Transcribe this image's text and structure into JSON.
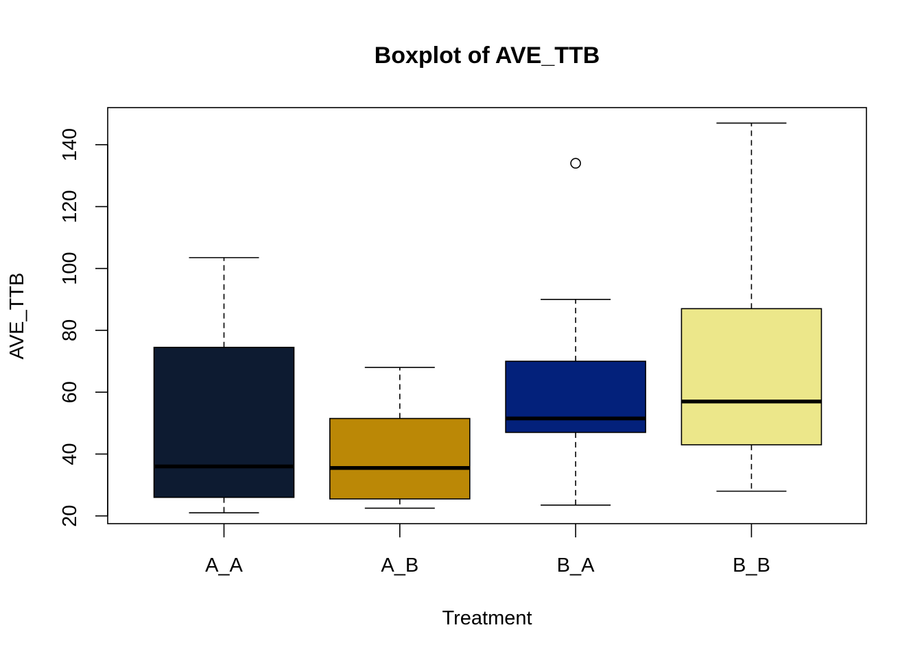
{
  "chart_data": {
    "type": "boxplot",
    "title": "Boxplot of AVE_TTB",
    "xlabel": "Treatment",
    "ylabel": "AVE_TTB",
    "ylim": [
      17.5,
      152
    ],
    "yticks": [
      20,
      40,
      60,
      80,
      100,
      120,
      140
    ],
    "categories": [
      "A_A",
      "A_B",
      "B_A",
      "B_B"
    ],
    "boxes": [
      {
        "category": "A_A",
        "whisker_low": 21,
        "q1": 26,
        "median": 36,
        "q3": 74.5,
        "whisker_high": 103.5,
        "outliers": [],
        "color": "#0d1b31"
      },
      {
        "category": "A_B",
        "whisker_low": 22.5,
        "q1": 25.5,
        "median": 35.5,
        "q3": 51.5,
        "whisker_high": 68,
        "outliers": [],
        "color": "#bb8806"
      },
      {
        "category": "B_A",
        "whisker_low": 23.5,
        "q1": 47,
        "median": 51.5,
        "q3": 70,
        "whisker_high": 90,
        "outliers": [
          134
        ],
        "color": "#03217b"
      },
      {
        "category": "B_B",
        "whisker_low": 28,
        "q1": 43,
        "median": 57,
        "q3": 87,
        "whisker_high": 147,
        "outliers": [],
        "color": "#ece78a"
      }
    ],
    "grid": false,
    "legend": "none"
  }
}
